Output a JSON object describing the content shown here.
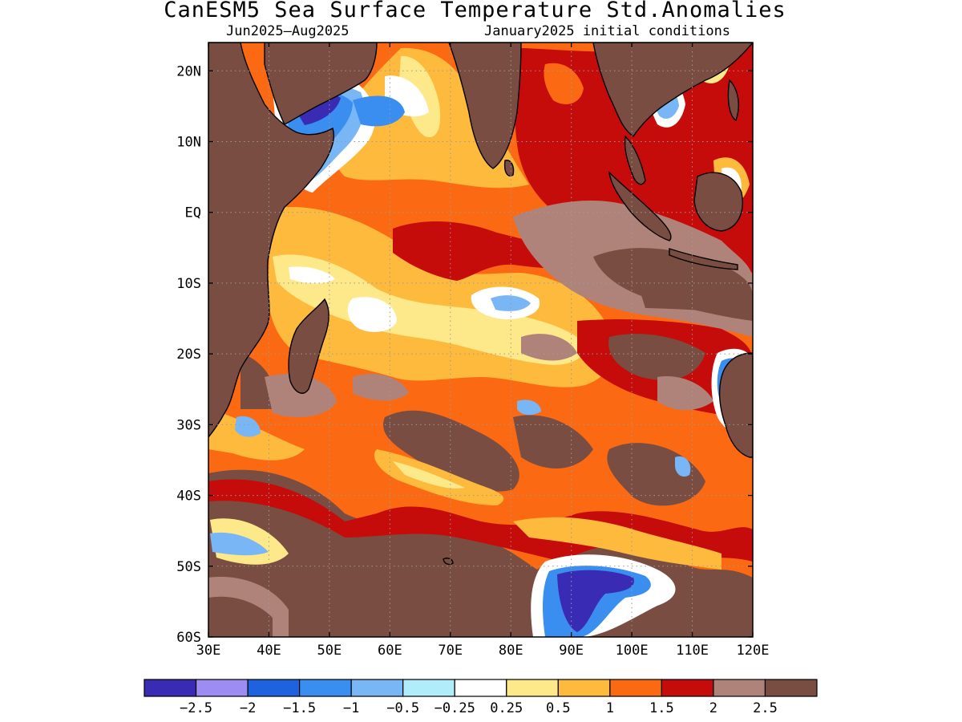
{
  "title": "CanESM5 Sea Surface Temperature Std.Anomalies",
  "subtitle_left": "Jun2025—Aug2025",
  "subtitle_right": "January2025 initial conditions",
  "map": {
    "lon_range": [
      30,
      120
    ],
    "lat_range": [
      -60,
      24
    ],
    "lon_ticks": [
      "30E",
      "40E",
      "50E",
      "60E",
      "70E",
      "80E",
      "90E",
      "100E",
      "110E",
      "120E"
    ],
    "lat_ticks": [
      "20N",
      "10N",
      "EQ",
      "10S",
      "20S",
      "30S",
      "40S",
      "50S",
      "60S"
    ],
    "grid": "dotted"
  },
  "colorbar": {
    "colors": [
      "#3a2bb5",
      "#9d8cf2",
      "#1f62e0",
      "#3a8ef0",
      "#78b6f5",
      "#b0ecfa",
      "#ffffff",
      "#fde98a",
      "#fdba3c",
      "#fb6a12",
      "#c60b0b",
      "#b0837a",
      "#7a4d42"
    ],
    "labels": [
      "−2.5",
      "−2",
      "−1.5",
      "−1",
      "−0.5",
      "−0.25",
      "0.25",
      "0.5",
      "1",
      "1.5",
      "2",
      "2.5"
    ]
  },
  "colors": {
    "land": "#7a4d42",
    "coast": "#000000"
  }
}
